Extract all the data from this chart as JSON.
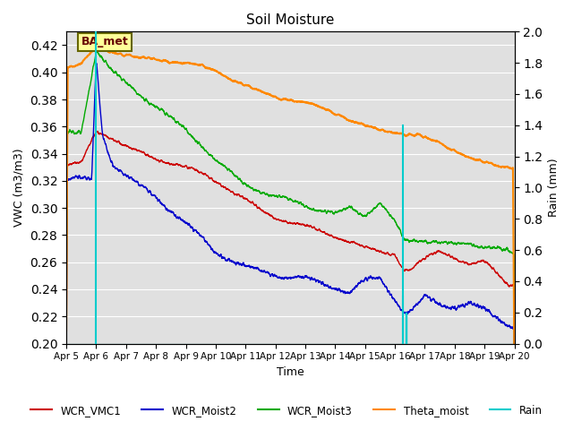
{
  "title": "Soil Moisture",
  "ylabel_left": "VWC (m3/m3)",
  "ylabel_right": "Rain (mm)",
  "xlabel": "Time",
  "annotation": "BA_met",
  "ylim_left": [
    0.2,
    0.43
  ],
  "ylim_right": [
    0.0,
    2.0
  ],
  "tick_labels": [
    "Apr 5",
    "Apr 6",
    "Apr 7",
    "Apr 8",
    "Apr 9",
    "Apr 10",
    "Apr 11",
    "Apr 12",
    "Apr 13",
    "Apr 14",
    "Apr 15",
    "Apr 16",
    "Apr 17",
    "Apr 18",
    "Apr 19",
    "Apr 20"
  ],
  "yticks_left": [
    0.2,
    0.22,
    0.24,
    0.26,
    0.28,
    0.3,
    0.32,
    0.34,
    0.36,
    0.38,
    0.4,
    0.42
  ],
  "yticks_right": [
    0.0,
    0.2,
    0.4,
    0.6,
    0.8,
    1.0,
    1.2,
    1.4,
    1.6,
    1.8,
    2.0
  ],
  "colors": {
    "WCR_VMC1": "#cc0000",
    "WCR_Moist2": "#0000cc",
    "WCR_Moist3": "#00aa00",
    "Theta_moist": "#ff8800",
    "Rain": "#00cccc",
    "background": "#e0e0e0",
    "annotation_bg": "#ffff99",
    "annotation_border": "#888800"
  }
}
